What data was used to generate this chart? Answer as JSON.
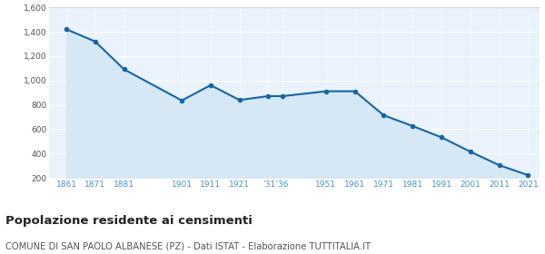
{
  "years": [
    1861,
    1871,
    1881,
    1901,
    1911,
    1921,
    1931,
    1936,
    1951,
    1961,
    1971,
    1981,
    1991,
    2001,
    2011,
    2021
  ],
  "population": [
    1422,
    1321,
    1092,
    836,
    962,
    840,
    872,
    872,
    912,
    912,
    714,
    626,
    533,
    415,
    304,
    222
  ],
  "line_color": "#1565a8",
  "fill_color": "#d6e8f5",
  "marker_color": "#1565a8",
  "bg_color": "#eaf2fb",
  "grid_color": "#ffffff",
  "title": "Popolazione residente ai censimenti",
  "subtitle": "COMUNE DI SAN PAOLO ALBANESE (PZ) - Dati ISTAT - Elaborazione TUTTITALIA.IT",
  "ylim": [
    200,
    1600
  ],
  "yticks": [
    200,
    400,
    600,
    800,
    1000,
    1200,
    1400,
    1600
  ],
  "ytick_labels": [
    "200",
    "400",
    "600",
    "800",
    "1,000",
    "1,200",
    "1,400",
    "1,600"
  ],
  "title_fontsize": 9.5,
  "subtitle_fontsize": 7.2,
  "tick_color": "#4a90c8",
  "tick_fontsize": 6.5,
  "xtick_positions": [
    1861,
    1871,
    1881,
    1901,
    1911,
    1921,
    1933.5,
    1951,
    1961,
    1971,
    1981,
    1991,
    2001,
    2011,
    2021
  ],
  "xtick_labels": [
    "1861",
    "1871",
    "1881",
    "1901",
    "1911",
    "1921",
    "’31’36",
    "1951",
    "1961",
    "1971",
    "1981",
    "1991",
    "2001",
    "2011",
    "2021"
  ],
  "xlim": [
    1855,
    2025
  ]
}
